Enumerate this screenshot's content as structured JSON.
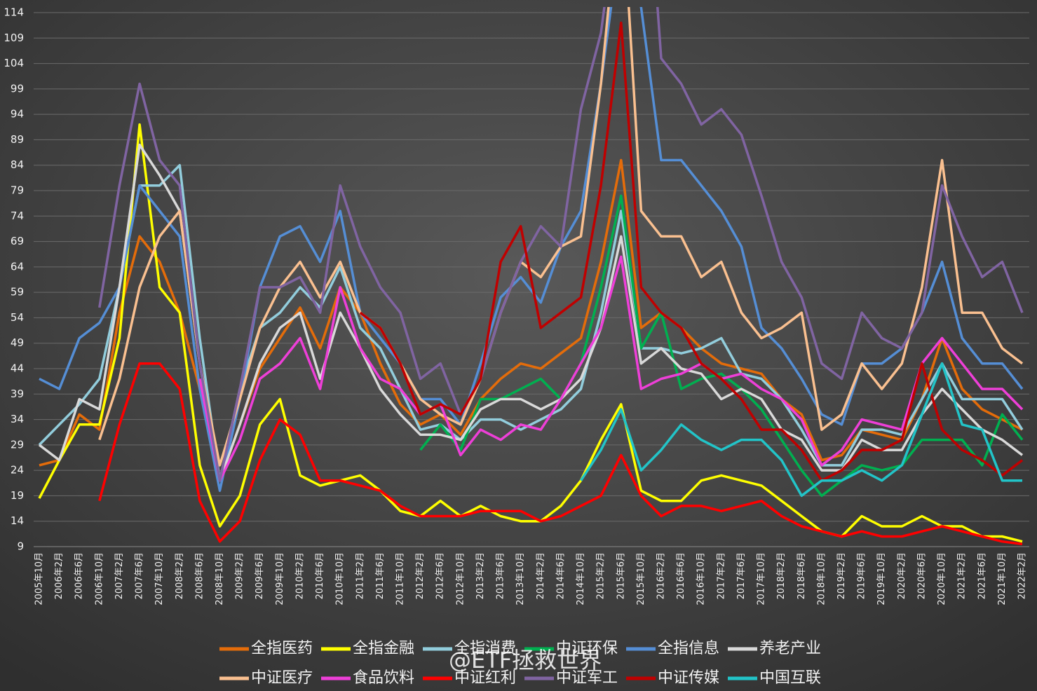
{
  "chart_data": {
    "type": "line",
    "watermark": "@ETF拯救世界",
    "categories": [
      "2005年10月",
      "2006年2月",
      "2006年6月",
      "2006年10月",
      "2007年2月",
      "2007年6月",
      "2007年10月",
      "2008年2月",
      "2008年6月",
      "2008年10月",
      "2009年2月",
      "2009年6月",
      "2009年10月",
      "2010年2月",
      "2010年6月",
      "2010年10月",
      "2011年2月",
      "2011年6月",
      "2011年10月",
      "2012年2月",
      "2012年6月",
      "2012年10月",
      "2013年2月",
      "2013年6月",
      "2013年10月",
      "2014年2月",
      "2014年6月",
      "2014年10月",
      "2015年2月",
      "2015年6月",
      "2015年10月",
      "2016年2月",
      "2016年6月",
      "2016年10月",
      "2017年2月",
      "2017年6月",
      "2017年10月",
      "2018年2月",
      "2018年6月",
      "2018年10月",
      "2019年2月",
      "2019年6月",
      "2019年10月",
      "2020年2月",
      "2020年6月",
      "2020年10月",
      "2021年2月",
      "2021年6月",
      "2021年10月",
      "2022年2月"
    ],
    "ylim": [
      9,
      114
    ],
    "yticks": [
      9,
      14,
      19,
      24,
      29,
      34,
      39,
      44,
      49,
      54,
      59,
      64,
      69,
      74,
      79,
      84,
      89,
      94,
      99,
      104,
      109,
      114
    ],
    "grid": true,
    "legend": "bottom",
    "series": [
      {
        "name": "全指医药",
        "color": "#e46c0a",
        "values": [
          25,
          26,
          35,
          32,
          55,
          70,
          65,
          55,
          40,
          22,
          33,
          44,
          50,
          56,
          48,
          60,
          55,
          45,
          37,
          33,
          35,
          31,
          38,
          42,
          45,
          44,
          47,
          50,
          65,
          85,
          52,
          55,
          52,
          48,
          45,
          44,
          43,
          38,
          35,
          26,
          27,
          32,
          31,
          30,
          38,
          50,
          40,
          36,
          34,
          32
        ]
      },
      {
        "name": "全指金融",
        "color": "#ffff00",
        "values": [
          18.5,
          26,
          33,
          33,
          50,
          92,
          60,
          55,
          25,
          13,
          19,
          33,
          38,
          23,
          21,
          22,
          23,
          20,
          16,
          15,
          18,
          15,
          17,
          15,
          14,
          14,
          17,
          22,
          30,
          37,
          20,
          18,
          18,
          22,
          23,
          22,
          21,
          18,
          15,
          12,
          11,
          15,
          13,
          13,
          15,
          13,
          13,
          11,
          11,
          10
        ]
      },
      {
        "name": "全指消费",
        "color": "#92cddc",
        "values": [
          29,
          33,
          37,
          42,
          60,
          80,
          80,
          84,
          50,
          22,
          40,
          52,
          55,
          60,
          56,
          64,
          52,
          48,
          40,
          32,
          33,
          30,
          34,
          34,
          32,
          34,
          36,
          40,
          55,
          75,
          48,
          48,
          47,
          48,
          50,
          43,
          42,
          38,
          32,
          25,
          25,
          32,
          32,
          31,
          38,
          45,
          38,
          38,
          38,
          32
        ]
      },
      {
        "name": "中证环保",
        "color": "#00b050",
        "values": [
          null,
          null,
          null,
          null,
          null,
          null,
          null,
          null,
          null,
          null,
          null,
          null,
          null,
          null,
          null,
          null,
          null,
          null,
          null,
          28,
          33,
          28,
          38,
          38,
          40,
          42,
          38,
          45,
          60,
          78,
          48,
          55,
          40,
          42,
          43,
          40,
          36,
          30,
          24,
          19,
          22,
          25,
          24,
          25,
          30,
          30,
          30,
          25,
          35,
          30
        ]
      },
      {
        "name": "全指信息",
        "color": "#558ed5",
        "values": [
          42,
          40,
          50,
          53,
          60,
          80,
          75,
          70,
          40,
          20,
          38,
          60,
          70,
          72,
          65,
          75,
          55,
          50,
          45,
          38,
          38,
          33,
          45,
          58,
          62,
          57,
          68,
          75,
          100,
          130,
          115,
          85,
          85,
          80,
          75,
          68,
          52,
          48,
          42,
          35,
          33,
          45,
          45,
          48,
          55,
          65,
          50,
          45,
          45,
          40
        ]
      },
      {
        "name": "养老产业",
        "color": "#d9d9d9",
        "values": [
          29,
          26,
          38,
          36,
          60,
          88,
          82,
          75,
          45,
          22,
          33,
          45,
          52,
          55,
          42,
          55,
          48,
          40,
          35,
          31,
          31,
          30,
          36,
          38,
          38,
          36,
          38,
          42,
          52,
          70,
          45,
          48,
          44,
          43,
          38,
          40,
          38,
          32,
          30,
          24,
          24,
          30,
          28,
          28,
          35,
          40,
          36,
          32,
          30,
          27
        ]
      },
      {
        "name": "中证医疗",
        "color": "#fac090",
        "values": [
          null,
          null,
          null,
          30,
          42,
          60,
          70,
          75,
          45,
          25,
          38,
          52,
          60,
          65,
          58,
          65,
          55,
          52,
          45,
          38,
          35,
          33,
          42,
          55,
          65,
          62,
          68,
          70,
          100,
          140,
          75,
          70,
          70,
          62,
          65,
          55,
          50,
          52,
          55,
          32,
          35,
          45,
          40,
          45,
          60,
          85,
          55,
          55,
          48,
          45
        ]
      },
      {
        "name": "食品饮料",
        "color": "#ee3fd8",
        "values": [
          null,
          null,
          null,
          null,
          null,
          null,
          null,
          null,
          42,
          22,
          30,
          42,
          45,
          50,
          40,
          60,
          48,
          42,
          40,
          35,
          37,
          27,
          32,
          30,
          33,
          32,
          38,
          45,
          52,
          66,
          40,
          42,
          43,
          45,
          42,
          43,
          40,
          38,
          34,
          25,
          28,
          34,
          33,
          32,
          45,
          50,
          45,
          40,
          40,
          36
        ]
      },
      {
        "name": "中证红利",
        "color": "#ff0000",
        "values": [
          null,
          null,
          null,
          18,
          33,
          45,
          45,
          40,
          18,
          10,
          14,
          26,
          34,
          31,
          22,
          22,
          21,
          20,
          17,
          15,
          15,
          15,
          16,
          16,
          16,
          14,
          15,
          17,
          19,
          27,
          19,
          15,
          17,
          17,
          16,
          17,
          18,
          15,
          13,
          12,
          11,
          12,
          11,
          11,
          12,
          13,
          12,
          11,
          10,
          9.5
        ]
      },
      {
        "name": "中证军工",
        "color": "#8064a2",
        "values": [
          null,
          null,
          null,
          56,
          80,
          100,
          85,
          80,
          45,
          22,
          40,
          60,
          60,
          62,
          55,
          80,
          68,
          60,
          55,
          42,
          45,
          35,
          42,
          55,
          65,
          72,
          68,
          95,
          110,
          140,
          160,
          105,
          100,
          92,
          95,
          90,
          78,
          65,
          58,
          45,
          42,
          55,
          50,
          48,
          55,
          80,
          70,
          62,
          65,
          55
        ]
      },
      {
        "name": "中证传媒",
        "color": "#c00000",
        "values": [
          null,
          null,
          null,
          null,
          null,
          null,
          null,
          null,
          null,
          null,
          null,
          null,
          null,
          null,
          null,
          null,
          55,
          52,
          45,
          35,
          37,
          35,
          42,
          65,
          72,
          52,
          55,
          58,
          80,
          112,
          60,
          55,
          52,
          45,
          42,
          38,
          32,
          32,
          28,
          22,
          24,
          28,
          28,
          30,
          45,
          32,
          28,
          26,
          23,
          26
        ]
      },
      {
        "name": "中国互联",
        "color": "#22c4c8",
        "values": [
          null,
          null,
          null,
          null,
          null,
          null,
          null,
          null,
          null,
          null,
          null,
          null,
          null,
          null,
          null,
          null,
          null,
          null,
          null,
          null,
          null,
          null,
          null,
          null,
          null,
          null,
          null,
          22,
          28,
          36,
          24,
          28,
          33,
          30,
          28,
          30,
          30,
          26,
          19,
          22,
          22,
          24,
          22,
          25,
          35,
          45,
          33,
          32,
          22,
          22
        ]
      }
    ]
  }
}
